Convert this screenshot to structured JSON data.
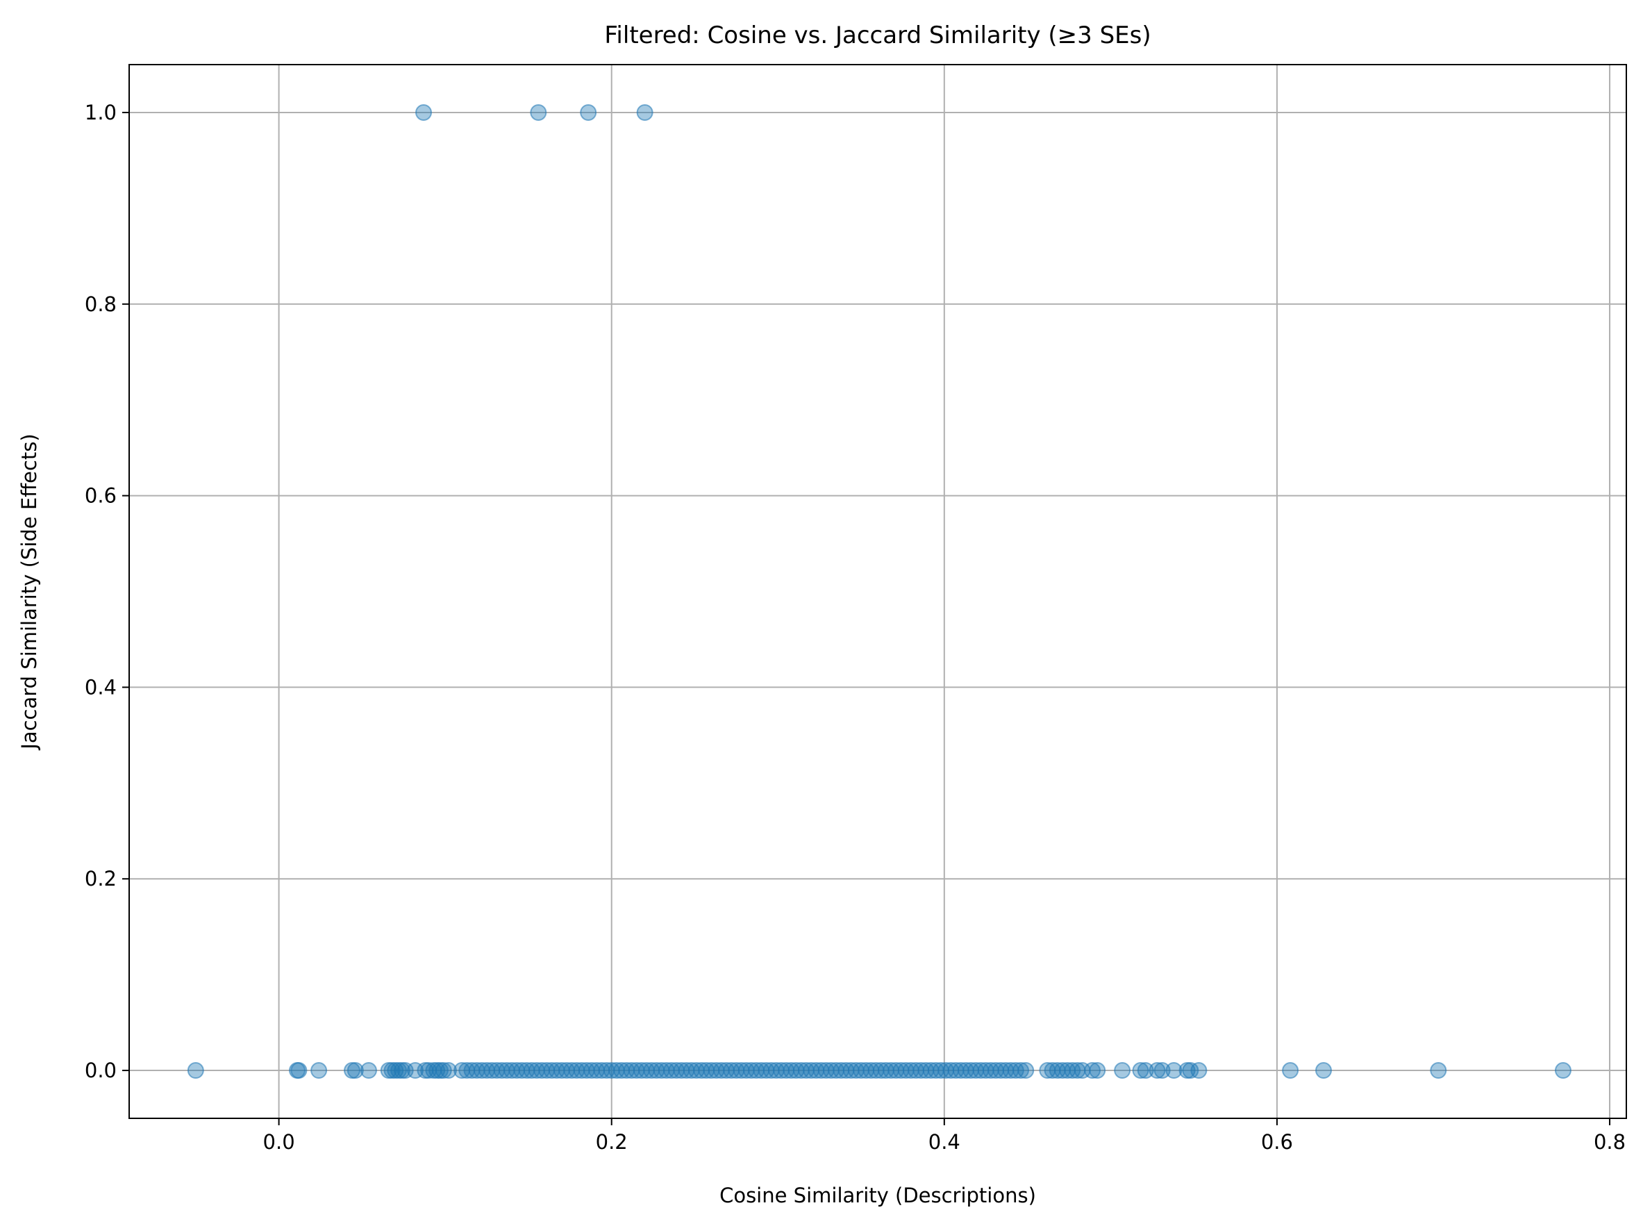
{
  "chart_data": {
    "type": "scatter",
    "title": "Filtered: Cosine vs. Jaccard Similarity (≥3 SEs)",
    "xlabel": "Cosine Similarity (Descriptions)",
    "ylabel": "Jaccard Similarity (Side Effects)",
    "xlim": [
      -0.09,
      0.81
    ],
    "ylim": [
      -0.05,
      1.05
    ],
    "xticks": [
      0.0,
      0.2,
      0.4,
      0.6,
      0.8
    ],
    "xtick_labels": [
      "0.0",
      "0.2",
      "0.4",
      "0.6",
      "0.8"
    ],
    "yticks": [
      0.0,
      0.2,
      0.4,
      0.6,
      0.8,
      1.0
    ],
    "ytick_labels": [
      "0.0",
      "0.2",
      "0.4",
      "0.6",
      "0.8",
      "1.0"
    ],
    "grid": true,
    "series": [
      {
        "color": "#1f77b4",
        "alpha": 0.4,
        "points": [
          [
            0.087,
            1.0
          ],
          [
            0.156,
            1.0
          ],
          [
            0.186,
            1.0
          ],
          [
            0.22,
            1.0
          ],
          [
            -0.05,
            0.0
          ],
          [
            0.011,
            0.0
          ],
          [
            0.012,
            0.0
          ],
          [
            0.024,
            0.0
          ],
          [
            0.044,
            0.0
          ],
          [
            0.046,
            0.0
          ],
          [
            0.054,
            0.0
          ],
          [
            0.066,
            0.0
          ],
          [
            0.068,
            0.0
          ],
          [
            0.07,
            0.0
          ],
          [
            0.072,
            0.0
          ],
          [
            0.074,
            0.0
          ],
          [
            0.076,
            0.0
          ],
          [
            0.082,
            0.0
          ],
          [
            0.088,
            0.0
          ],
          [
            0.09,
            0.0
          ],
          [
            0.093,
            0.0
          ],
          [
            0.095,
            0.0
          ],
          [
            0.097,
            0.0
          ],
          [
            0.099,
            0.0
          ],
          [
            0.102,
            0.0
          ],
          [
            0.11,
            0.0
          ],
          [
            0.113,
            0.0
          ],
          [
            0.116,
            0.0
          ],
          [
            0.119,
            0.0
          ],
          [
            0.122,
            0.0
          ],
          [
            0.125,
            0.0
          ],
          [
            0.128,
            0.0
          ],
          [
            0.131,
            0.0
          ],
          [
            0.134,
            0.0
          ],
          [
            0.137,
            0.0
          ],
          [
            0.14,
            0.0
          ],
          [
            0.143,
            0.0
          ],
          [
            0.146,
            0.0
          ],
          [
            0.149,
            0.0
          ],
          [
            0.152,
            0.0
          ],
          [
            0.155,
            0.0
          ],
          [
            0.158,
            0.0
          ],
          [
            0.161,
            0.0
          ],
          [
            0.164,
            0.0
          ],
          [
            0.167,
            0.0
          ],
          [
            0.17,
            0.0
          ],
          [
            0.173,
            0.0
          ],
          [
            0.176,
            0.0
          ],
          [
            0.179,
            0.0
          ],
          [
            0.182,
            0.0
          ],
          [
            0.185,
            0.0
          ],
          [
            0.188,
            0.0
          ],
          [
            0.191,
            0.0
          ],
          [
            0.194,
            0.0
          ],
          [
            0.197,
            0.0
          ],
          [
            0.2,
            0.0
          ],
          [
            0.203,
            0.0
          ],
          [
            0.206,
            0.0
          ],
          [
            0.209,
            0.0
          ],
          [
            0.212,
            0.0
          ],
          [
            0.215,
            0.0
          ],
          [
            0.218,
            0.0
          ],
          [
            0.221,
            0.0
          ],
          [
            0.224,
            0.0
          ],
          [
            0.227,
            0.0
          ],
          [
            0.23,
            0.0
          ],
          [
            0.233,
            0.0
          ],
          [
            0.236,
            0.0
          ],
          [
            0.239,
            0.0
          ],
          [
            0.242,
            0.0
          ],
          [
            0.245,
            0.0
          ],
          [
            0.248,
            0.0
          ],
          [
            0.251,
            0.0
          ],
          [
            0.254,
            0.0
          ],
          [
            0.257,
            0.0
          ],
          [
            0.26,
            0.0
          ],
          [
            0.263,
            0.0
          ],
          [
            0.266,
            0.0
          ],
          [
            0.269,
            0.0
          ],
          [
            0.272,
            0.0
          ],
          [
            0.275,
            0.0
          ],
          [
            0.278,
            0.0
          ],
          [
            0.281,
            0.0
          ],
          [
            0.284,
            0.0
          ],
          [
            0.287,
            0.0
          ],
          [
            0.29,
            0.0
          ],
          [
            0.293,
            0.0
          ],
          [
            0.296,
            0.0
          ],
          [
            0.299,
            0.0
          ],
          [
            0.302,
            0.0
          ],
          [
            0.305,
            0.0
          ],
          [
            0.308,
            0.0
          ],
          [
            0.311,
            0.0
          ],
          [
            0.314,
            0.0
          ],
          [
            0.317,
            0.0
          ],
          [
            0.32,
            0.0
          ],
          [
            0.323,
            0.0
          ],
          [
            0.326,
            0.0
          ],
          [
            0.329,
            0.0
          ],
          [
            0.332,
            0.0
          ],
          [
            0.335,
            0.0
          ],
          [
            0.338,
            0.0
          ],
          [
            0.341,
            0.0
          ],
          [
            0.344,
            0.0
          ],
          [
            0.347,
            0.0
          ],
          [
            0.35,
            0.0
          ],
          [
            0.353,
            0.0
          ],
          [
            0.356,
            0.0
          ],
          [
            0.359,
            0.0
          ],
          [
            0.362,
            0.0
          ],
          [
            0.365,
            0.0
          ],
          [
            0.368,
            0.0
          ],
          [
            0.371,
            0.0
          ],
          [
            0.374,
            0.0
          ],
          [
            0.377,
            0.0
          ],
          [
            0.38,
            0.0
          ],
          [
            0.383,
            0.0
          ],
          [
            0.386,
            0.0
          ],
          [
            0.389,
            0.0
          ],
          [
            0.392,
            0.0
          ],
          [
            0.395,
            0.0
          ],
          [
            0.398,
            0.0
          ],
          [
            0.401,
            0.0
          ],
          [
            0.404,
            0.0
          ],
          [
            0.407,
            0.0
          ],
          [
            0.41,
            0.0
          ],
          [
            0.413,
            0.0
          ],
          [
            0.416,
            0.0
          ],
          [
            0.419,
            0.0
          ],
          [
            0.422,
            0.0
          ],
          [
            0.425,
            0.0
          ],
          [
            0.428,
            0.0
          ],
          [
            0.431,
            0.0
          ],
          [
            0.434,
            0.0
          ],
          [
            0.437,
            0.0
          ],
          [
            0.44,
            0.0
          ],
          [
            0.443,
            0.0
          ],
          [
            0.446,
            0.0
          ],
          [
            0.449,
            0.0
          ],
          [
            0.462,
            0.0
          ],
          [
            0.465,
            0.0
          ],
          [
            0.468,
            0.0
          ],
          [
            0.471,
            0.0
          ],
          [
            0.474,
            0.0
          ],
          [
            0.477,
            0.0
          ],
          [
            0.48,
            0.0
          ],
          [
            0.483,
            0.0
          ],
          [
            0.489,
            0.0
          ],
          [
            0.492,
            0.0
          ],
          [
            0.507,
            0.0
          ],
          [
            0.518,
            0.0
          ],
          [
            0.521,
            0.0
          ],
          [
            0.528,
            0.0
          ],
          [
            0.531,
            0.0
          ],
          [
            0.538,
            0.0
          ],
          [
            0.546,
            0.0
          ],
          [
            0.548,
            0.0
          ],
          [
            0.553,
            0.0
          ],
          [
            0.608,
            0.0
          ],
          [
            0.628,
            0.0
          ],
          [
            0.697,
            0.0
          ],
          [
            0.772,
            0.0
          ]
        ]
      }
    ]
  }
}
